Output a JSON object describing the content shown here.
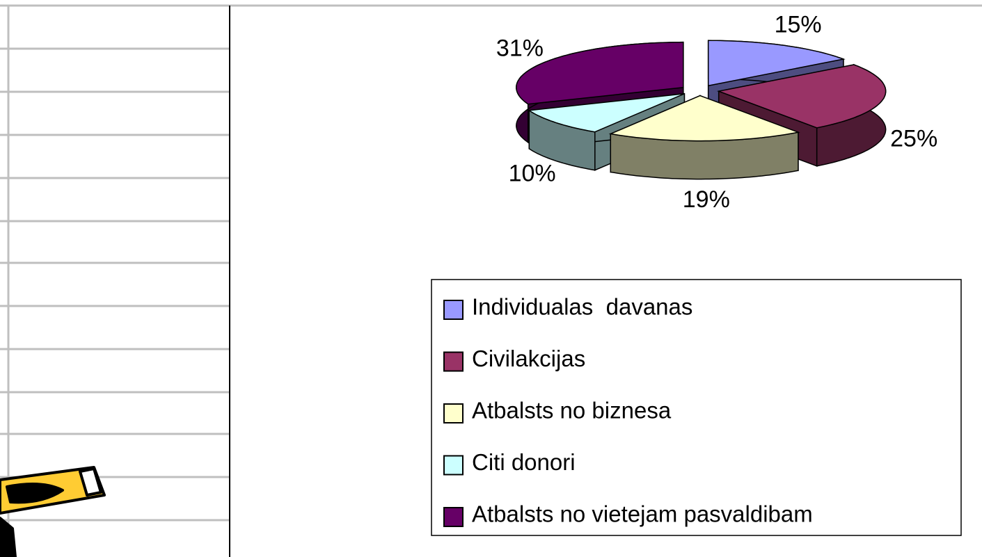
{
  "chart_data": {
    "type": "pie",
    "categories": [
      "Individualas  davanas",
      "Civilakcijas",
      "Atbalsts no biznesa",
      "Citi donori",
      "Atbalsts no vietejam pasvaldibam"
    ],
    "values": [
      15,
      25,
      19,
      10,
      31
    ],
    "value_labels": [
      "15%",
      "25%",
      "19%",
      "10%",
      "31%"
    ],
    "colors": [
      "#9999ff",
      "#993366",
      "#ffffcc",
      "#ccffff",
      "#660066"
    ],
    "legend": "bottom-right"
  }
}
